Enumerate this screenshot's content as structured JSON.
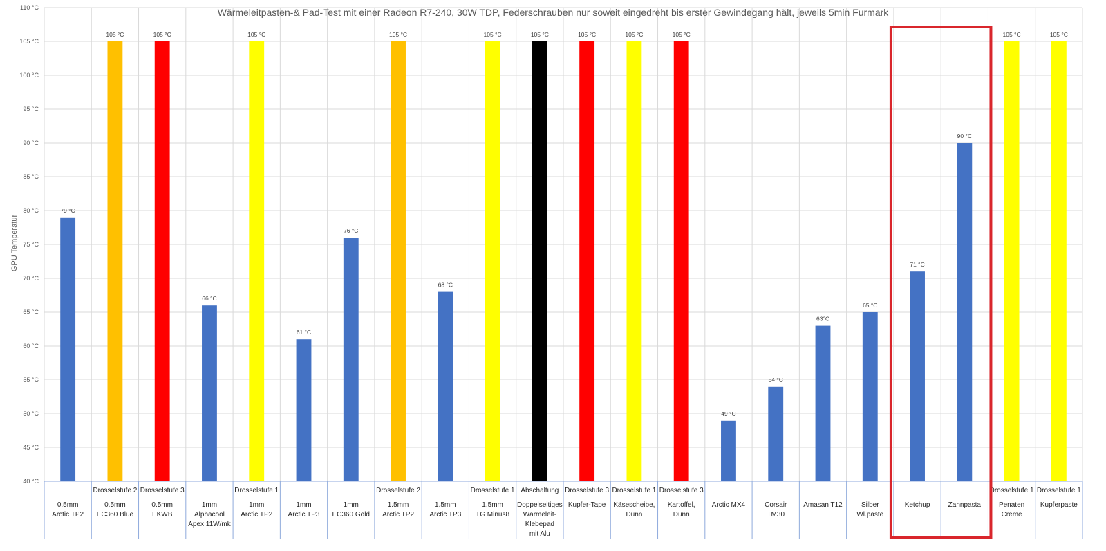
{
  "chart_data": {
    "type": "bar",
    "title": "Wärmeleitpasten-& Pad-Test mit einer Radeon R7-240, 30W TDP, Federschrauben nur soweit eingedreht bis erster Gewindegang hält, jeweils 5min Furmark",
    "ylabel": "GPU Temperatur",
    "ylim": [
      40,
      110
    ],
    "ytick_step": 5,
    "ytick_labels": [
      "40 °C",
      "45 °C",
      "50 °C",
      "55 °C",
      "60 °C",
      "65 °C",
      "70 °C",
      "75 °C",
      "80 °C",
      "85 °C",
      "90 °C",
      "95 °C",
      "100 °C",
      "105 °C",
      "110 °C"
    ],
    "grid": true,
    "legend": "none",
    "categories": [
      {
        "top": "",
        "lines": [
          "0.5mm",
          "Arctic TP2"
        ]
      },
      {
        "top": "Drosselstufe 2",
        "lines": [
          "0.5mm",
          "EC360 Blue"
        ]
      },
      {
        "top": "Drosselstufe 3",
        "lines": [
          "0.5mm",
          "EKWB"
        ]
      },
      {
        "top": "",
        "lines": [
          "1mm",
          "Alphacool",
          "Apex 11W/mk"
        ]
      },
      {
        "top": "Drosselstufe 1",
        "lines": [
          "1mm",
          "Arctic TP2"
        ]
      },
      {
        "top": "",
        "lines": [
          "1mm",
          "Arctic TP3"
        ]
      },
      {
        "top": "",
        "lines": [
          "1mm",
          "EC360 Gold"
        ]
      },
      {
        "top": "Drosselstufe 2",
        "lines": [
          "1.5mm",
          "Arctic TP2"
        ]
      },
      {
        "top": "",
        "lines": [
          "1.5mm",
          "Arctic TP3"
        ]
      },
      {
        "top": "Drosselstufe 1",
        "lines": [
          "1.5mm",
          "TG Minus8"
        ]
      },
      {
        "top": "Abschaltung",
        "lines": [
          "Doppelseitiges",
          "Wärmeleit-",
          "Klebepad",
          "mit Alu"
        ]
      },
      {
        "top": "Drosselstufe 3",
        "lines": [
          "Kupfer-Tape"
        ]
      },
      {
        "top": "Drosselstufe 1",
        "lines": [
          "Käsescheibe,",
          "Dünn"
        ]
      },
      {
        "top": "Drosselstufe 3",
        "lines": [
          "Kartoffel,",
          "Dünn"
        ]
      },
      {
        "top": "",
        "lines": [
          "Arctic MX4"
        ]
      },
      {
        "top": "",
        "lines": [
          "Corsair",
          "TM30"
        ]
      },
      {
        "top": "",
        "lines": [
          "Amasan T12"
        ]
      },
      {
        "top": "",
        "lines": [
          "Silber",
          "Wl.paste"
        ]
      },
      {
        "top": "",
        "lines": [
          "Ketchup"
        ]
      },
      {
        "top": "",
        "lines": [
          "Zahnpasta"
        ]
      },
      {
        "top": "Drosselstufe 1",
        "lines": [
          "Penaten",
          "Creme"
        ]
      },
      {
        "top": "Drosselstufe 1",
        "lines": [
          "Kupferpaste"
        ]
      }
    ],
    "values": [
      79,
      105,
      105,
      66,
      105,
      61,
      76,
      105,
      68,
      105,
      105,
      105,
      105,
      105,
      49,
      54,
      63,
      65,
      71,
      90,
      105,
      105
    ],
    "data_labels": [
      "79 °C",
      "105 °C",
      "105 °C",
      "66 °C",
      "105 °C",
      "61 °C",
      "76 °C",
      "105 °C",
      "68 °C",
      "105 °C",
      "105 °C",
      "105 °C",
      "105 °C",
      "105 °C",
      "49 °C",
      "54 °C",
      "63°C",
      "65 °C",
      "71 °C",
      "90 °C",
      "105 °C",
      "105 °C"
    ],
    "bar_colors": [
      "#4472c4",
      "#ffc000",
      "#ff0000",
      "#4472c4",
      "#ffff00",
      "#4472c4",
      "#4472c4",
      "#ffc000",
      "#4472c4",
      "#ffff00",
      "#000000",
      "#ff0000",
      "#ffff00",
      "#ff0000",
      "#4472c4",
      "#4472c4",
      "#4472c4",
      "#4472c4",
      "#4472c4",
      "#4472c4",
      "#ffff00",
      "#ffff00"
    ],
    "highlight": {
      "categories": [
        "Ketchup",
        "Zahnpasta"
      ],
      "color": "#d9262c"
    }
  }
}
